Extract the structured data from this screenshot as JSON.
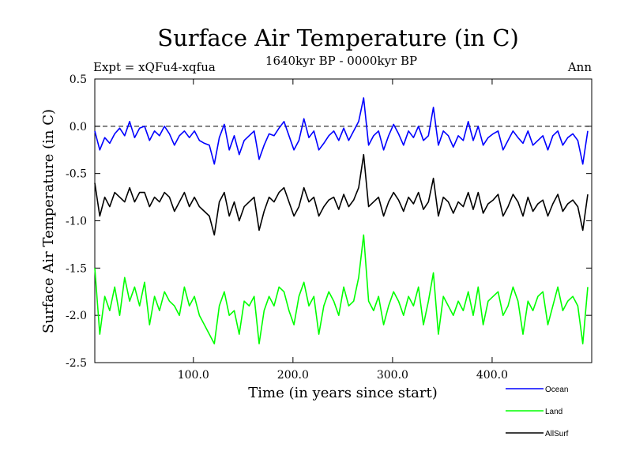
{
  "chart_data": {
    "type": "line",
    "title": "Surface Air Temperature (in C)",
    "subtitle_left": "Expt = xQFu4-xqfua",
    "subtitle_center": "1640kyr BP - 0000kyr BP",
    "subtitle_right": "Ann",
    "xlabel": "Time (in years since start)",
    "ylabel": "Surface Air Temperature (in C)",
    "xlim": [
      1,
      500
    ],
    "ylim": [
      -2.5,
      0.5
    ],
    "x_ticks": [
      100,
      200,
      300,
      400
    ],
    "x_tick_labels": [
      "100.0",
      "200.0",
      "300.0",
      "400.0"
    ],
    "y_ticks": [
      0.5,
      0.0,
      -0.5,
      -1.0,
      -1.5,
      -2.0,
      -2.5
    ],
    "y_tick_labels": [
      "0.5",
      "0.0",
      "-0.5",
      "-1.0",
      "-1.5",
      "-2.0",
      "-2.5"
    ],
    "reference_line": 0.0,
    "x_step": 5,
    "series": [
      {
        "name": "Ocean",
        "color": "#0000ff",
        "values": [
          -0.05,
          -0.25,
          -0.12,
          -0.18,
          -0.08,
          -0.02,
          -0.1,
          0.05,
          -0.12,
          -0.02,
          0.0,
          -0.15,
          -0.05,
          -0.1,
          0.0,
          -0.08,
          -0.2,
          -0.1,
          -0.05,
          -0.12,
          -0.05,
          -0.15,
          -0.18,
          -0.2,
          -0.4,
          -0.12,
          0.02,
          -0.25,
          -0.1,
          -0.3,
          -0.15,
          -0.1,
          -0.05,
          -0.35,
          -0.2,
          -0.08,
          -0.1,
          -0.02,
          0.05,
          -0.1,
          -0.25,
          -0.15,
          0.08,
          -0.12,
          -0.05,
          -0.25,
          -0.18,
          -0.1,
          -0.05,
          -0.15,
          -0.02,
          -0.15,
          -0.05,
          0.05,
          0.3,
          -0.2,
          -0.1,
          -0.05,
          -0.25,
          -0.1,
          0.02,
          -0.08,
          -0.2,
          -0.05,
          -0.12,
          0.0,
          -0.15,
          -0.1,
          0.2,
          -0.2,
          -0.05,
          -0.1,
          -0.22,
          -0.1,
          -0.15,
          0.05,
          -0.15,
          0.0,
          -0.2,
          -0.12,
          -0.08,
          -0.05,
          -0.25,
          -0.15,
          -0.05,
          -0.12,
          -0.18,
          -0.05,
          -0.2,
          -0.15,
          -0.1,
          -0.25,
          -0.1,
          -0.05,
          -0.2,
          -0.12,
          -0.08,
          -0.15,
          -0.4,
          -0.05
        ]
      },
      {
        "name": "Land",
        "color": "#00ff00",
        "values": [
          -1.5,
          -2.2,
          -1.8,
          -1.95,
          -1.7,
          -2.0,
          -1.6,
          -1.85,
          -1.7,
          -1.9,
          -1.65,
          -2.1,
          -1.8,
          -1.95,
          -1.75,
          -1.85,
          -1.9,
          -2.0,
          -1.7,
          -1.9,
          -1.8,
          -2.0,
          -2.1,
          -2.2,
          -2.3,
          -1.9,
          -1.75,
          -2.0,
          -1.95,
          -2.2,
          -1.85,
          -1.9,
          -1.8,
          -2.3,
          -1.95,
          -1.8,
          -1.9,
          -1.7,
          -1.75,
          -1.95,
          -2.1,
          -1.8,
          -1.65,
          -1.9,
          -1.8,
          -2.2,
          -1.9,
          -1.75,
          -1.85,
          -2.0,
          -1.7,
          -1.9,
          -1.85,
          -1.6,
          -1.15,
          -1.85,
          -1.95,
          -1.8,
          -2.1,
          -1.9,
          -1.75,
          -1.85,
          -2.0,
          -1.8,
          -1.9,
          -1.7,
          -2.1,
          -1.85,
          -1.55,
          -2.2,
          -1.8,
          -1.9,
          -2.0,
          -1.85,
          -1.95,
          -1.75,
          -2.0,
          -1.7,
          -2.1,
          -1.85,
          -1.8,
          -1.75,
          -2.0,
          -1.9,
          -1.7,
          -1.85,
          -2.2,
          -1.85,
          -1.95,
          -1.8,
          -1.75,
          -2.1,
          -1.9,
          -1.7,
          -1.95,
          -1.85,
          -1.8,
          -1.9,
          -2.3,
          -1.7
        ]
      },
      {
        "name": "AllSurf",
        "color": "#000000",
        "values": [
          -0.6,
          -0.95,
          -0.75,
          -0.85,
          -0.7,
          -0.75,
          -0.8,
          -0.65,
          -0.8,
          -0.7,
          -0.7,
          -0.85,
          -0.75,
          -0.8,
          -0.7,
          -0.75,
          -0.9,
          -0.8,
          -0.7,
          -0.85,
          -0.75,
          -0.85,
          -0.9,
          -0.95,
          -1.15,
          -0.8,
          -0.7,
          -0.95,
          -0.8,
          -1.0,
          -0.85,
          -0.8,
          -0.75,
          -1.1,
          -0.9,
          -0.75,
          -0.8,
          -0.7,
          -0.65,
          -0.8,
          -0.95,
          -0.85,
          -0.65,
          -0.8,
          -0.75,
          -0.95,
          -0.85,
          -0.78,
          -0.75,
          -0.88,
          -0.72,
          -0.85,
          -0.78,
          -0.65,
          -0.3,
          -0.85,
          -0.8,
          -0.75,
          -0.95,
          -0.8,
          -0.7,
          -0.78,
          -0.9,
          -0.75,
          -0.82,
          -0.7,
          -0.88,
          -0.8,
          -0.55,
          -0.95,
          -0.75,
          -0.8,
          -0.92,
          -0.8,
          -0.85,
          -0.7,
          -0.88,
          -0.7,
          -0.92,
          -0.82,
          -0.78,
          -0.72,
          -0.95,
          -0.85,
          -0.72,
          -0.8,
          -0.95,
          -0.75,
          -0.9,
          -0.82,
          -0.78,
          -0.95,
          -0.82,
          -0.72,
          -0.9,
          -0.82,
          -0.78,
          -0.85,
          -1.1,
          -0.72
        ]
      }
    ],
    "legend": [
      {
        "name": "Ocean",
        "color": "#0000ff"
      },
      {
        "name": "Land",
        "color": "#00ff00"
      },
      {
        "name": "AllSurf",
        "color": "#000000"
      }
    ],
    "legend_position": "bottom-right"
  }
}
